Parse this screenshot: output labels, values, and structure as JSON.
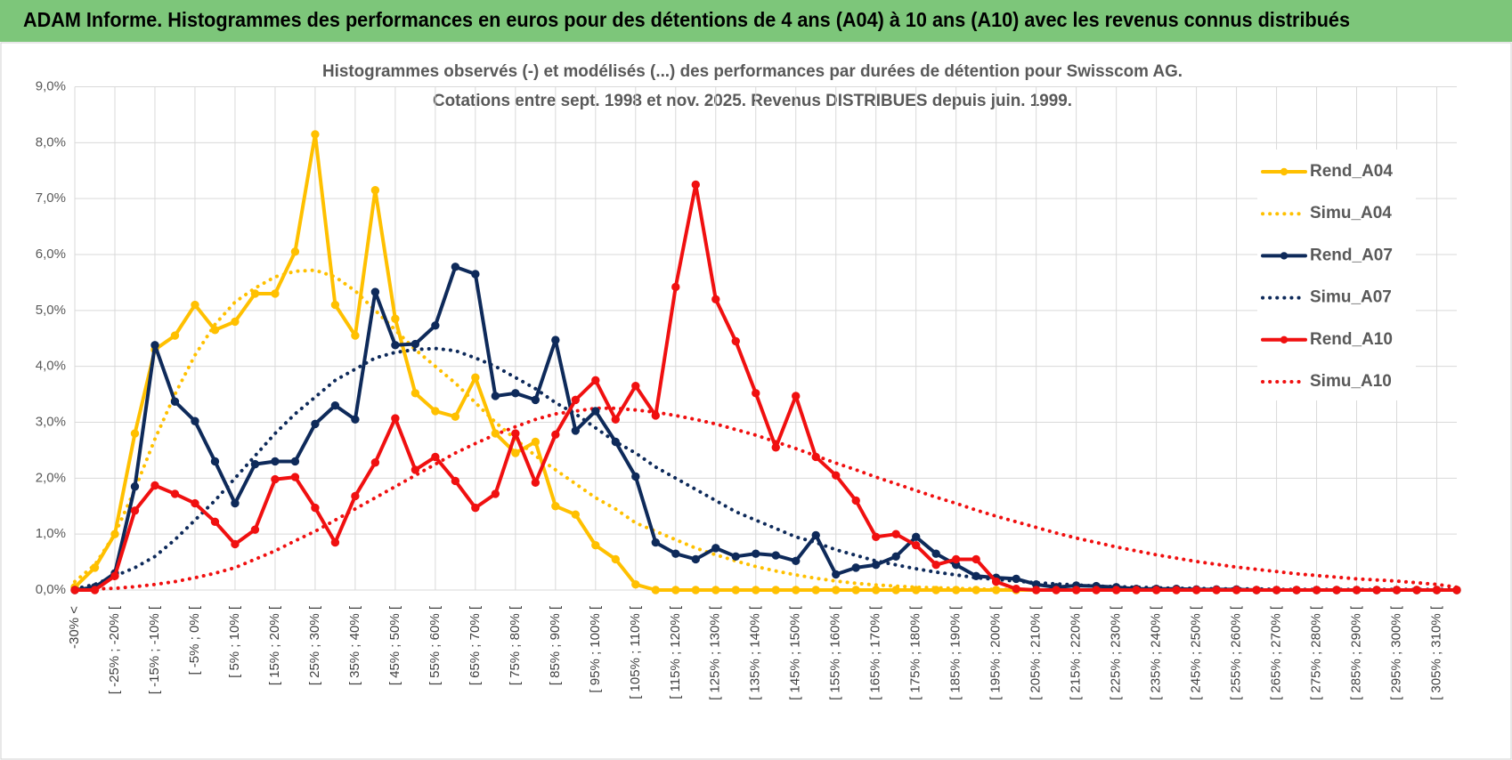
{
  "header": {
    "title": "ADAM Informe. Histogrammes des performances en euros pour des détentions de 4 ans (A04) à 10 ans (A10) avec les revenus connus distribués"
  },
  "chart_data": {
    "type": "line",
    "title": "Histogrammes observés (-) et modélisés (...) des performances par durées de détention pour Swisscom AG.",
    "subtitle": "Cotations entre sept. 1998 et nov. 2025. Revenus DISTRIBUES depuis juin. 1999.",
    "categories": [
      "-30% <",
      null,
      "[ -25% ; -20% [",
      null,
      "[ -15% ; -10% [",
      null,
      "[ -5% ; 0% [",
      null,
      "[ 5% ; 10% [",
      null,
      "[ 15% ; 20% [",
      null,
      "[ 25% ; 30% [",
      null,
      "[ 35% ; 40% [",
      null,
      "[ 45% ; 50% [",
      null,
      "[ 55% ; 60% [",
      null,
      "[ 65% ; 70% [",
      null,
      "[ 75% ; 80% [",
      null,
      "[ 85% ; 90% [",
      null,
      "[ 95% ; 100% [",
      null,
      "[ 105% ; 110% [",
      null,
      "[ 115% ; 120% [",
      null,
      "[ 125% ; 130% [",
      null,
      "[ 135% ; 140% [",
      null,
      "[ 145% ; 150% [",
      null,
      "[ 155% ; 160% [",
      null,
      "[ 165% ; 170% [",
      null,
      "[ 175% ; 180% [",
      null,
      "[ 185% ; 190% [",
      null,
      "[ 195% ; 200% [",
      null,
      "[ 205% ; 210% [",
      null,
      "[ 215% ; 220% [",
      null,
      "[ 225% ; 230% [",
      null,
      "[ 235% ; 240% [",
      null,
      "[ 245% ; 250% [",
      null,
      "[ 255% ; 260% [",
      null,
      "[ 265% ; 270% [",
      null,
      "[ 275% ; 280% [",
      null,
      "[ 285% ; 290% [",
      null,
      "[ 295% ; 300% [",
      null,
      "[ 305% ; 310% [",
      null
    ],
    "ylim": [
      0,
      9
    ],
    "yticks": [
      {
        "value": 0,
        "label": "0,0%"
      },
      {
        "value": 1,
        "label": "1,0%"
      },
      {
        "value": 2,
        "label": "2,0%"
      },
      {
        "value": 3,
        "label": "3,0%"
      },
      {
        "value": 4,
        "label": "4,0%"
      },
      {
        "value": 5,
        "label": "5,0%"
      },
      {
        "value": 6,
        "label": "6,0%"
      },
      {
        "value": 7,
        "label": "7,0%"
      },
      {
        "value": 8,
        "label": "8,0%"
      },
      {
        "value": 9,
        "label": "9,0%"
      }
    ],
    "grid": true,
    "legend": "right",
    "series": [
      {
        "name": "Rend_A04",
        "color": "#ffc000",
        "style": "solid",
        "markers": true,
        "values": [
          0.05,
          0.4,
          1.0,
          2.8,
          4.3,
          4.55,
          5.1,
          4.65,
          4.8,
          5.3,
          5.3,
          6.05,
          8.15,
          5.1,
          4.55,
          7.15,
          4.85,
          3.52,
          3.2,
          3.1,
          3.8,
          2.8,
          2.45,
          2.65,
          1.5,
          1.35,
          0.8,
          0.55,
          0.1,
          0,
          0,
          0,
          0,
          0,
          0,
          0,
          0,
          0,
          0,
          0,
          0,
          0,
          0,
          0,
          0,
          0,
          0,
          0,
          0,
          0,
          0,
          0,
          0,
          0,
          0,
          0,
          0,
          0,
          0,
          0,
          0,
          0,
          0,
          0,
          0,
          0,
          0,
          0,
          0,
          0
        ]
      },
      {
        "name": "Simu_A04",
        "color": "#ffc000",
        "style": "dotted",
        "markers": false,
        "values": [
          0.15,
          0.45,
          1.0,
          1.8,
          2.7,
          3.5,
          4.2,
          4.75,
          5.15,
          5.4,
          5.6,
          5.7,
          5.72,
          5.6,
          5.35,
          5.0,
          4.65,
          4.3,
          4.0,
          3.7,
          3.35,
          3.0,
          2.7,
          2.4,
          2.15,
          1.9,
          1.65,
          1.45,
          1.2,
          1.05,
          0.9,
          0.75,
          0.63,
          0.52,
          0.42,
          0.34,
          0.27,
          0.21,
          0.16,
          0.12,
          0.09,
          0.07,
          0.05,
          0.04,
          0.03,
          0.02,
          0.01,
          0.01,
          0,
          0,
          0,
          0,
          0,
          0,
          0,
          0,
          0,
          0,
          0,
          0,
          0,
          0,
          0,
          0,
          0,
          0,
          0,
          0,
          0,
          0
        ]
      },
      {
        "name": "Rend_A07",
        "color": "#0e2a5a",
        "style": "solid",
        "markers": true,
        "values": [
          0,
          0.05,
          0.3,
          1.85,
          4.38,
          3.37,
          3.02,
          2.3,
          1.55,
          2.25,
          2.3,
          2.3,
          2.97,
          3.3,
          3.05,
          5.33,
          4.38,
          4.4,
          4.73,
          5.78,
          5.65,
          3.47,
          3.52,
          3.4,
          4.47,
          2.85,
          3.2,
          2.65,
          2.03,
          0.85,
          0.65,
          0.55,
          0.75,
          0.6,
          0.65,
          0.62,
          0.52,
          0.98,
          0.28,
          0.4,
          0.45,
          0.6,
          0.95,
          0.65,
          0.45,
          0.25,
          0.22,
          0.2,
          0.1,
          0.05,
          0.08,
          0.07,
          0.05,
          0.02,
          0.02,
          0.02,
          0.01,
          0.01,
          0.01,
          0,
          0,
          0,
          0,
          0,
          0,
          0,
          0,
          0,
          0,
          0
        ]
      },
      {
        "name": "Simu_A07",
        "color": "#0e2a5a",
        "style": "dotted",
        "markers": false,
        "values": [
          0.02,
          0.1,
          0.25,
          0.4,
          0.6,
          0.9,
          1.25,
          1.6,
          2.0,
          2.4,
          2.8,
          3.15,
          3.45,
          3.75,
          3.95,
          4.15,
          4.25,
          4.3,
          4.32,
          4.28,
          4.15,
          4.0,
          3.8,
          3.6,
          3.35,
          3.15,
          2.9,
          2.65,
          2.45,
          2.2,
          2.0,
          1.8,
          1.6,
          1.4,
          1.25,
          1.1,
          0.95,
          0.85,
          0.72,
          0.62,
          0.52,
          0.45,
          0.38,
          0.32,
          0.27,
          0.22,
          0.19,
          0.16,
          0.13,
          0.11,
          0.09,
          0.07,
          0.06,
          0.05,
          0.04,
          0.03,
          0.03,
          0.02,
          0.02,
          0.02,
          0.01,
          0.01,
          0.01,
          0.01,
          0.01,
          0.01,
          0.01,
          0.01,
          0.01,
          0.01
        ]
      },
      {
        "name": "Rend_A10",
        "color": "#f01010",
        "style": "solid",
        "markers": true,
        "values": [
          0,
          0,
          0.25,
          1.42,
          1.87,
          1.72,
          1.55,
          1.22,
          0.82,
          1.08,
          1.98,
          2.02,
          1.47,
          0.85,
          1.68,
          2.28,
          3.07,
          2.15,
          2.38,
          1.95,
          1.47,
          1.72,
          2.8,
          1.92,
          2.78,
          3.4,
          3.75,
          3.05,
          3.65,
          3.12,
          5.42,
          7.25,
          5.2,
          4.45,
          3.52,
          2.55,
          3.47,
          2.38,
          2.05,
          1.6,
          0.95,
          1.0,
          0.8,
          0.45,
          0.55,
          0.55,
          0.15,
          0.02,
          0,
          0,
          0,
          0,
          0,
          0,
          0,
          0,
          0,
          0,
          0,
          0,
          0,
          0,
          0,
          0,
          0,
          0,
          0,
          0,
          0,
          0
        ]
      },
      {
        "name": "Simu_A10",
        "color": "#f01010",
        "style": "dotted",
        "markers": false,
        "values": [
          0,
          0.02,
          0.03,
          0.06,
          0.1,
          0.15,
          0.22,
          0.3,
          0.4,
          0.55,
          0.7,
          0.88,
          1.05,
          1.25,
          1.45,
          1.65,
          1.85,
          2.05,
          2.25,
          2.45,
          2.62,
          2.78,
          2.92,
          3.05,
          3.15,
          3.2,
          3.25,
          3.25,
          3.22,
          3.18,
          3.12,
          3.05,
          2.97,
          2.87,
          2.77,
          2.65,
          2.53,
          2.4,
          2.27,
          2.15,
          2.02,
          1.9,
          1.78,
          1.66,
          1.55,
          1.43,
          1.32,
          1.22,
          1.12,
          1.02,
          0.93,
          0.85,
          0.77,
          0.7,
          0.63,
          0.57,
          0.51,
          0.46,
          0.41,
          0.37,
          0.33,
          0.29,
          0.26,
          0.23,
          0.2,
          0.18,
          0.16,
          0.13,
          0.1,
          0.05
        ]
      }
    ]
  }
}
